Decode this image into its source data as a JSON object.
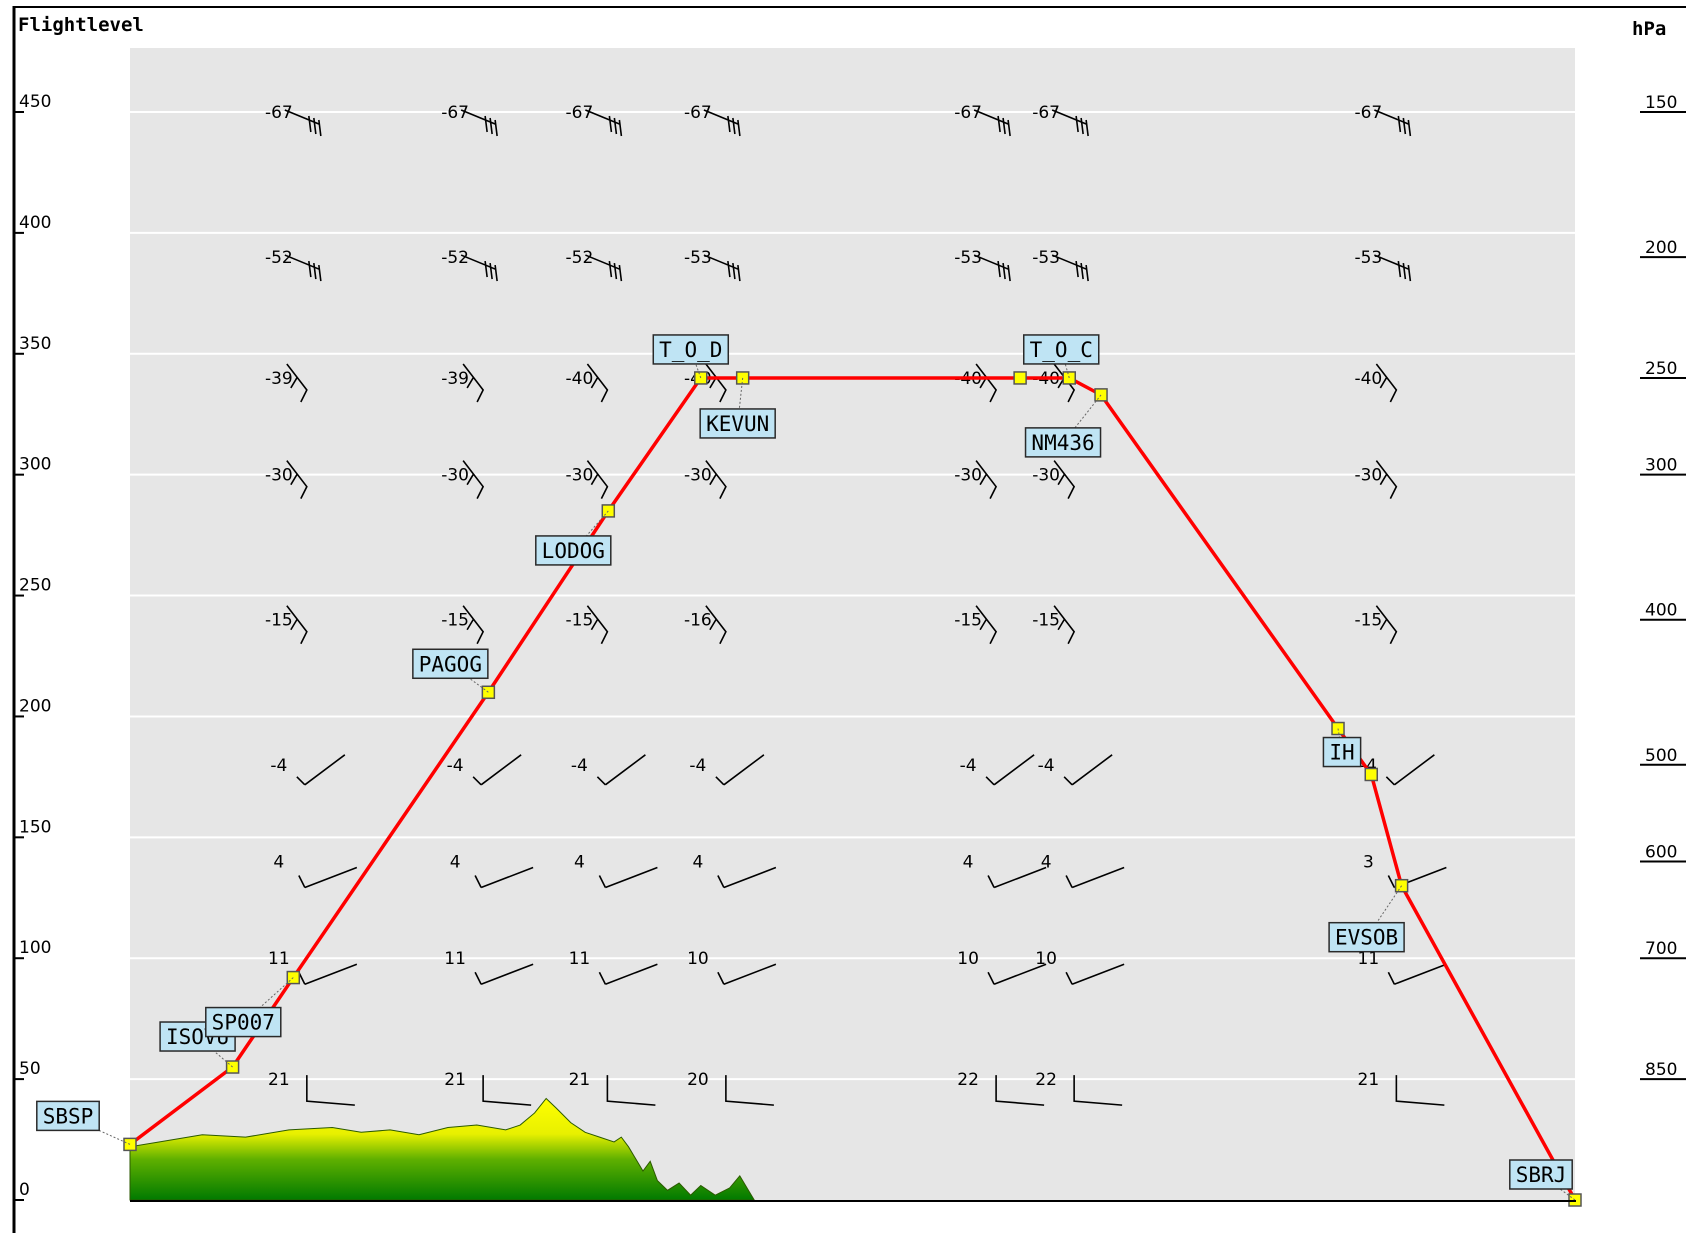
{
  "chart_data": {
    "type": "line",
    "title": "",
    "left_axis_label": "Flightlevel",
    "right_axis_label": "hPa",
    "x_range": [
      0,
      1
    ],
    "y_range": [
      0,
      470
    ],
    "left_ticks": [
      0,
      50,
      100,
      150,
      200,
      250,
      300,
      350,
      400,
      450
    ],
    "right_ticks": [
      {
        "label": "150",
        "fl": 450
      },
      {
        "label": "200",
        "fl": 390
      },
      {
        "label": "250",
        "fl": 340
      },
      {
        "label": "300",
        "fl": 300
      },
      {
        "label": "400",
        "fl": 240
      },
      {
        "label": "500",
        "fl": 180
      },
      {
        "label": "600",
        "fl": 140
      },
      {
        "label": "700",
        "fl": 100
      },
      {
        "label": "850",
        "fl": 50
      }
    ],
    "grid_levels": [
      50,
      100,
      150,
      200,
      250,
      300,
      350,
      400,
      450
    ],
    "route": {
      "color": "#ff0000",
      "waypoints": [
        {
          "name": "SBSP",
          "x": 0.0,
          "fl": 23
        },
        {
          "name": "ISOVU",
          "x": 0.071,
          "fl": 55
        },
        {
          "name": "SP007",
          "x": 0.113,
          "fl": 92
        },
        {
          "name": "PAGOG",
          "x": 0.248,
          "fl": 210
        },
        {
          "name": "LODOG",
          "x": 0.331,
          "fl": 285
        },
        {
          "name": "T_O_D",
          "x": 0.395,
          "fl": 340
        },
        {
          "name": "KEVUN",
          "x": 0.424,
          "fl": 340
        },
        {
          "name": "",
          "x": 0.616,
          "fl": 340
        },
        {
          "name": "T_O_C",
          "x": 0.65,
          "fl": 340
        },
        {
          "name": "NM436",
          "x": 0.672,
          "fl": 333
        },
        {
          "name": "IH",
          "x": 0.836,
          "fl": 195
        },
        {
          "name": "",
          "x": 0.859,
          "fl": 176
        },
        {
          "name": "EVSOB",
          "x": 0.88,
          "fl": 130
        },
        {
          "name": "SBRJ",
          "x": 1.0,
          "fl": 0
        }
      ]
    },
    "temperature_columns": [
      0.103,
      0.225,
      0.311,
      0.393,
      0.58,
      0.634,
      0.857
    ],
    "temperature_levels": [
      {
        "fl": 450,
        "values": [
          "-67",
          "-67",
          "-67",
          "-67",
          "-67",
          "-67",
          "-67"
        ]
      },
      {
        "fl": 390,
        "values": [
          "-52",
          "-52",
          "-52",
          "-53",
          "-53",
          "-53",
          "-53"
        ]
      },
      {
        "fl": 340,
        "values": [
          "-39",
          "-39",
          "-40",
          "-40",
          "-40",
          "-40",
          "-40"
        ]
      },
      {
        "fl": 300,
        "values": [
          "-30",
          "-30",
          "-30",
          "-30",
          "-30",
          "-30",
          "-30"
        ]
      },
      {
        "fl": 240,
        "values": [
          "-15",
          "-15",
          "-15",
          "-16",
          "-15",
          "-15",
          "-15"
        ]
      },
      {
        "fl": 180,
        "values": [
          "-4",
          "-4",
          "-4",
          "-4",
          "-4",
          "-4",
          "-4"
        ]
      },
      {
        "fl": 140,
        "values": [
          "4",
          "4",
          "4",
          "4",
          "4",
          "4",
          "3"
        ]
      },
      {
        "fl": 100,
        "values": [
          "11",
          "11",
          "11",
          "10",
          "10",
          "10",
          "11"
        ]
      },
      {
        "fl": 50,
        "values": [
          "21",
          "21",
          "21",
          "20",
          "22",
          "22",
          "21"
        ]
      }
    ],
    "terrain": {
      "x_end": 0.432,
      "profile": [
        [
          0.0,
          22
        ],
        [
          0.02,
          24
        ],
        [
          0.05,
          27
        ],
        [
          0.08,
          26
        ],
        [
          0.11,
          29
        ],
        [
          0.14,
          30
        ],
        [
          0.16,
          28
        ],
        [
          0.18,
          29
        ],
        [
          0.2,
          27
        ],
        [
          0.22,
          30
        ],
        [
          0.24,
          31
        ],
        [
          0.26,
          29
        ],
        [
          0.27,
          31
        ],
        [
          0.28,
          36
        ],
        [
          0.288,
          42
        ],
        [
          0.295,
          38
        ],
        [
          0.305,
          32
        ],
        [
          0.315,
          28
        ],
        [
          0.325,
          26
        ],
        [
          0.335,
          24
        ],
        [
          0.34,
          26
        ],
        [
          0.345,
          22
        ],
        [
          0.35,
          17
        ],
        [
          0.355,
          12
        ],
        [
          0.36,
          16
        ],
        [
          0.365,
          8
        ],
        [
          0.372,
          4
        ],
        [
          0.38,
          7
        ],
        [
          0.388,
          2
        ],
        [
          0.395,
          6
        ],
        [
          0.405,
          2
        ],
        [
          0.415,
          5
        ],
        [
          0.422,
          10
        ],
        [
          0.428,
          4
        ],
        [
          0.432,
          0
        ]
      ],
      "top_color": "#ffff00",
      "bottom_color": "#007a00"
    }
  }
}
